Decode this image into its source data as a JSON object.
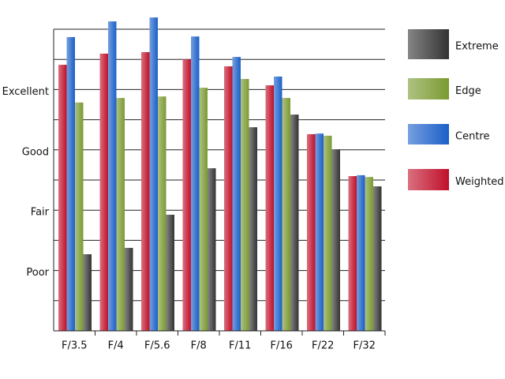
{
  "chart_data": {
    "type": "bar",
    "categories": [
      "F/3.5",
      "F/4",
      "F/5.6",
      "F/8",
      "F/11",
      "F/16",
      "F/22",
      "F/32"
    ],
    "series": [
      {
        "name": "Weighted",
        "color": "#c0102a",
        "values": [
          8.82,
          9.19,
          9.24,
          9.0,
          8.77,
          8.14,
          6.52,
          5.13
        ]
      },
      {
        "name": "Centre",
        "color": "#1a5fc8",
        "values": [
          9.74,
          10.26,
          10.39,
          9.76,
          9.08,
          8.43,
          6.54,
          5.16
        ]
      },
      {
        "name": "Edge",
        "color": "#7a9a30",
        "values": [
          7.57,
          7.72,
          7.77,
          8.06,
          8.35,
          7.72,
          6.47,
          5.1
        ]
      },
      {
        "name": "Extreme",
        "color": "#333333",
        "values": [
          2.54,
          2.75,
          3.85,
          5.39,
          6.75,
          7.17,
          6.02,
          4.79
        ]
      }
    ],
    "ylim": [
      0,
      10
    ],
    "yticks": [
      {
        "value": 2,
        "label": "Poor"
      },
      {
        "value": 4,
        "label": "Fair"
      },
      {
        "value": 6,
        "label": "Good"
      },
      {
        "value": 8,
        "label": "Excellent"
      }
    ],
    "minor_yticks": [
      0,
      1,
      2,
      3,
      4,
      5,
      6,
      7,
      8,
      9,
      10
    ],
    "grid": true,
    "legend": "right"
  }
}
